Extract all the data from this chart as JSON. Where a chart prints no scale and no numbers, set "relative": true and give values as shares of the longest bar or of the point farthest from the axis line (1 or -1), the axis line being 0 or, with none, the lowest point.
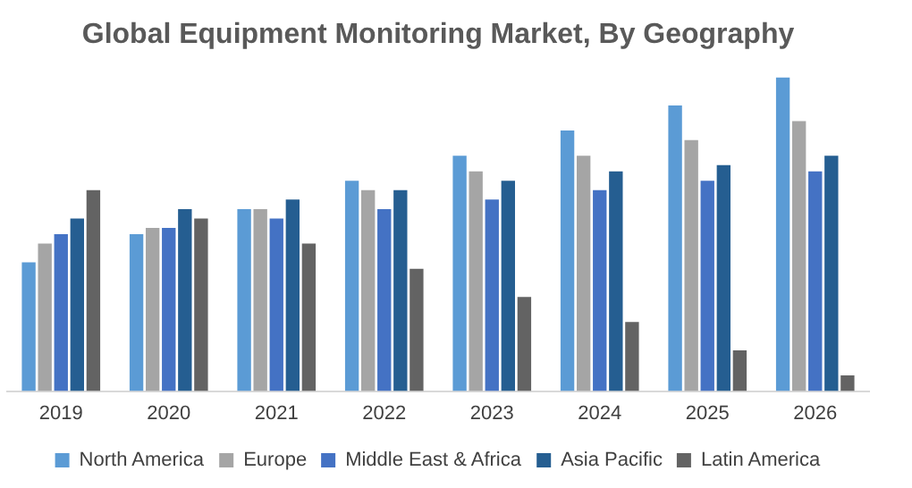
{
  "chart_data": {
    "type": "bar",
    "title": "Global Equipment Monitoring Market, By Geography",
    "categories": [
      "2019",
      "2020",
      "2021",
      "2022",
      "2023",
      "2024",
      "2025",
      "2026"
    ],
    "relative": true,
    "grid": false,
    "legend": "bottom",
    "series": [
      {
        "name": "North America",
        "color": "#5b9bd5",
        "values": [
          0.41,
          0.5,
          0.58,
          0.67,
          0.75,
          0.83,
          0.91,
          1
        ]
      },
      {
        "name": "Europe",
        "color": "#a5a5a5",
        "values": [
          0.47,
          0.52,
          0.58,
          0.64,
          0.7,
          0.75,
          0.8,
          0.86
        ]
      },
      {
        "name": "Middle East & Africa",
        "color": "#4472c4",
        "values": [
          0.5,
          0.52,
          0.55,
          0.58,
          0.61,
          0.64,
          0.67,
          0.7
        ]
      },
      {
        "name": "Asia Pacific",
        "color": "#255e91",
        "values": [
          0.55,
          0.58,
          0.61,
          0.64,
          0.67,
          0.7,
          0.72,
          0.75
        ]
      },
      {
        "name": "Latin America",
        "color": "#636363",
        "values": [
          0.64,
          0.55,
          0.47,
          0.39,
          0.3,
          0.22,
          0.13,
          0.05
        ]
      }
    ]
  }
}
